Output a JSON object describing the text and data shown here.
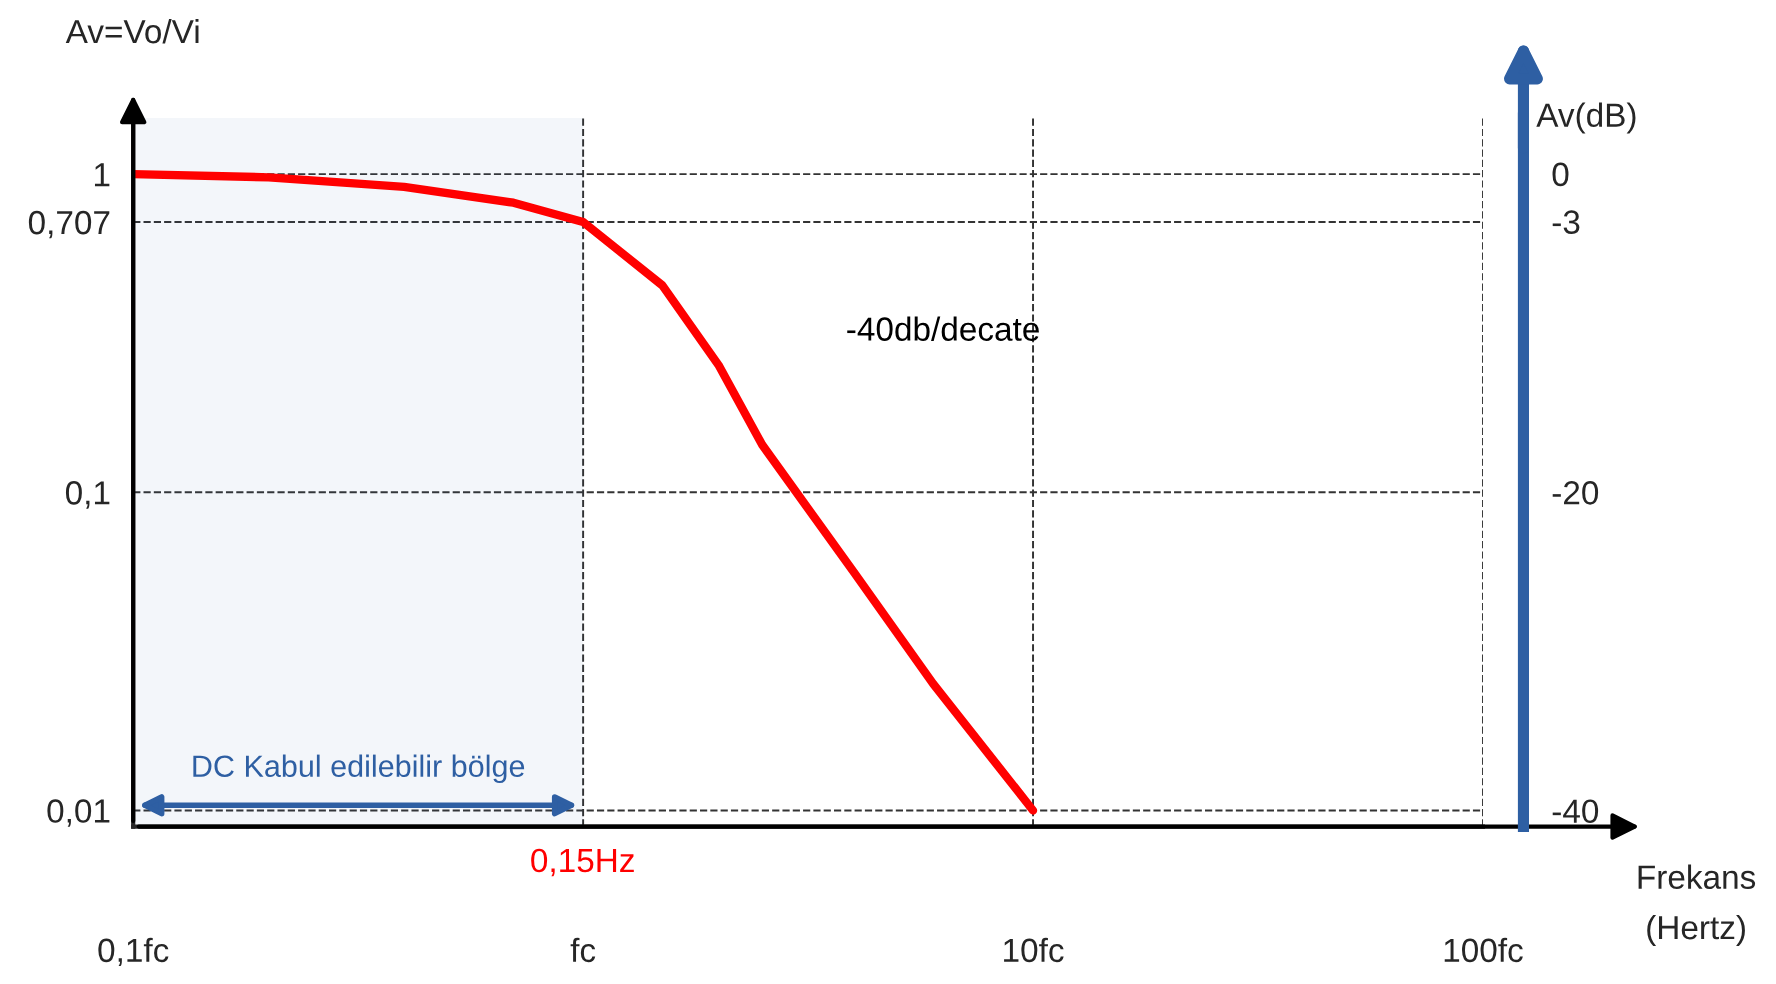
{
  "chart_data": {
    "type": "line",
    "ylabel": "Av=Vo/Vi",
    "y2label": "Av(dB)",
    "xlabel": "Frekans\n(Hertz)",
    "log": "xy",
    "grid": true,
    "line_style": "solid",
    "marker": "none",
    "xlim": [
      0.1,
      100
    ],
    "xticks": [
      {
        "value": 0.1,
        "label": "0,1fc"
      },
      {
        "value": 1,
        "label": "fc"
      },
      {
        "value": 10,
        "label": "10fc"
      },
      {
        "value": 100,
        "label": "100fc"
      }
    ],
    "ylim": [
      0.0089,
      1.5
    ],
    "yticks": [
      1,
      {
        "value": 0.707,
        "label": "0,707"
      },
      {
        "value": 0.1,
        "label": "0,1"
      },
      {
        "value": 0.01,
        "label": "0,01"
      }
    ],
    "y2lim": [
      -41,
      3.5
    ],
    "y2ticks": [
      0,
      -3,
      -20,
      -40
    ],
    "series": [
      {
        "color": "#ff0000",
        "x": [
          0.1,
          0.2,
          0.4,
          0.7,
          1,
          1.5,
          2,
          2.5,
          4,
          6,
          10
        ],
        "values": [
          1,
          0.977,
          0.912,
          0.813,
          0.707,
          0.447,
          0.251,
          0.141,
          0.056,
          0.025,
          0.01
        ]
      }
    ],
    "bands": [
      {
        "axis": "x",
        "from": 0.1,
        "to": 1,
        "label": "DC Kabul edilebilir bölge",
        "color": "#2e5fa3"
      }
    ],
    "annotations": [
      "-40db/decate",
      "0,15Hz"
    ]
  }
}
